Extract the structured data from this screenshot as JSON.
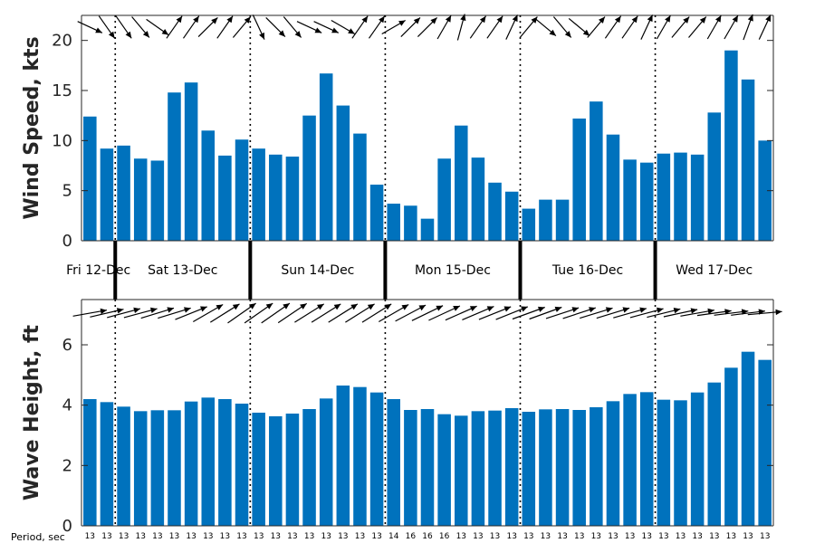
{
  "chart_data": [
    {
      "type": "bar",
      "ylabel": "Wind Speed, kts",
      "ylim": [
        0,
        22.5
      ],
      "yticks": [
        0,
        5,
        10,
        15,
        20
      ],
      "values": [
        12.4,
        9.2,
        9.5,
        8.2,
        8.0,
        14.8,
        15.8,
        11.0,
        8.5,
        10.1,
        9.2,
        8.6,
        8.4,
        12.5,
        16.7,
        13.5,
        10.7,
        5.6,
        3.7,
        3.5,
        2.2,
        8.2,
        11.5,
        8.3,
        5.8,
        4.9,
        3.2,
        4.1,
        4.1,
        12.2,
        13.9,
        10.6,
        8.1,
        7.8,
        8.7,
        8.8,
        8.6,
        12.8,
        19.0,
        16.1,
        10.0
      ],
      "direction_deg": [
        295,
        325,
        325,
        320,
        305,
        215,
        215,
        225,
        215,
        220,
        335,
        315,
        320,
        295,
        295,
        300,
        215,
        215,
        240,
        225,
        225,
        210,
        195,
        215,
        215,
        205,
        220,
        310,
        320,
        310,
        220,
        215,
        215,
        205,
        210,
        220,
        220,
        210,
        210,
        200,
        205
      ],
      "grid": false
    },
    {
      "type": "bar",
      "ylabel": "Wave Height, ft",
      "ylim": [
        0,
        7.5
      ],
      "yticks": [
        0,
        2,
        4,
        6
      ],
      "values": [
        4.2,
        4.1,
        3.95,
        3.8,
        3.83,
        3.83,
        4.12,
        4.25,
        4.2,
        4.05,
        3.75,
        3.63,
        3.72,
        3.87,
        4.22,
        4.65,
        4.6,
        4.42,
        4.2,
        3.84,
        3.87,
        3.7,
        3.65,
        3.8,
        3.82,
        3.9,
        3.78,
        3.86,
        3.87,
        3.84,
        3.93,
        4.13,
        4.37,
        4.43,
        4.18,
        4.16,
        4.42,
        4.75,
        5.24,
        5.77,
        5.5
      ],
      "direction_deg": [
        260,
        257,
        255,
        255,
        253,
        253,
        248,
        240,
        238,
        235,
        235,
        235,
        236,
        238,
        238,
        238,
        238,
        238,
        240,
        242,
        244,
        245,
        246,
        247,
        248,
        248,
        250,
        250,
        252,
        252,
        253,
        253,
        254,
        255,
        256,
        258,
        260,
        262,
        263,
        263,
        265
      ],
      "grid": false
    }
  ],
  "days": [
    "Fri 12-Dec",
    "Sat 13-Dec",
    "Sun 14-Dec",
    "Mon 15-Dec",
    "Tue 16-Dec",
    "Wed 17-Dec"
  ],
  "day_bars": [
    0,
    2,
    10,
    18,
    26,
    34,
    41
  ],
  "period_label": "Period, sec",
  "periods": [
    "13",
    "13",
    "13",
    "13",
    "13",
    "13",
    "13",
    "13",
    "13",
    "13",
    "13",
    "13",
    "13",
    "13",
    "13",
    "13",
    "13",
    "13",
    "14",
    "16",
    "16",
    "16",
    "13",
    "13",
    "13",
    "13",
    "13",
    "13",
    "13",
    "13",
    "13",
    "13",
    "13",
    "13",
    "13",
    "13",
    "13",
    "13",
    "13",
    "13",
    "13"
  ]
}
